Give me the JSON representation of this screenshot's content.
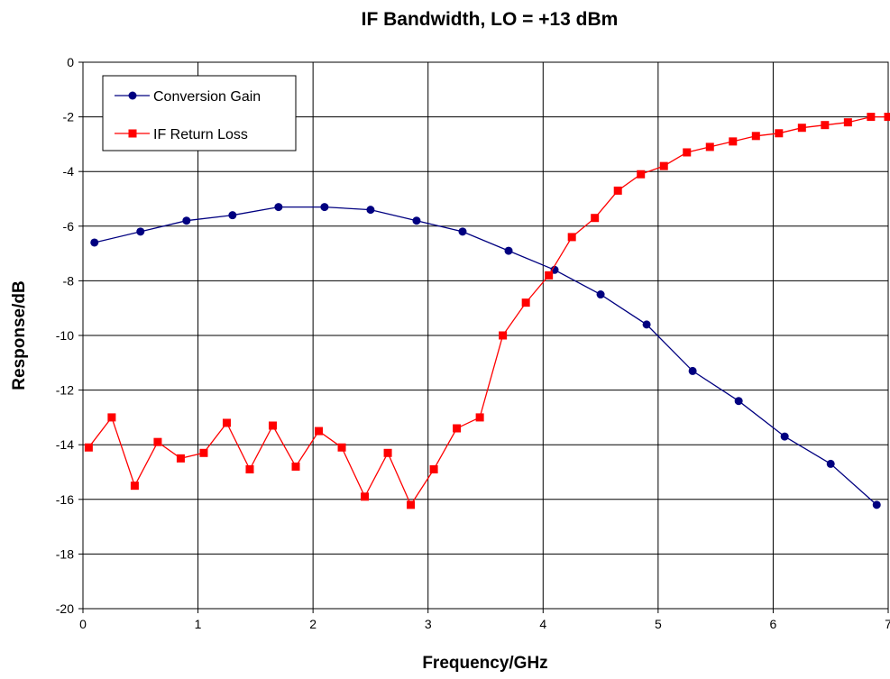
{
  "chart_data": {
    "type": "line",
    "title": "IF Bandwidth, LO = +13 dBm",
    "xlabel": "Frequency/GHz",
    "ylabel": "Response/dB",
    "xlim": [
      0,
      7
    ],
    "ylim": [
      -20,
      0
    ],
    "x_ticks": [
      "0",
      "1",
      "2",
      "3",
      "4",
      "5",
      "6",
      "7"
    ],
    "y_ticks": [
      "0",
      "-2",
      "-4",
      "-6",
      "-8",
      "-10",
      "-12",
      "-14",
      "-16",
      "-18",
      "-20"
    ],
    "grid": true,
    "legend": "top-left",
    "series": [
      {
        "name": "Conversion Gain",
        "color": "#000080",
        "marker": "circle",
        "x": [
          0.1,
          0.5,
          0.9,
          1.3,
          1.7,
          2.1,
          2.5,
          2.9,
          3.3,
          3.7,
          4.1,
          4.5,
          4.9,
          5.3,
          5.7,
          6.1,
          6.5,
          6.9
        ],
        "y": [
          -6.6,
          -6.2,
          -5.8,
          -5.6,
          -5.3,
          -5.3,
          -5.4,
          -5.8,
          -6.2,
          -6.9,
          -7.6,
          -8.5,
          -9.6,
          -11.3,
          -12.4,
          -13.7,
          -14.7,
          -16.2
        ]
      },
      {
        "name": "IF Return Loss",
        "color": "#ff0000",
        "marker": "square",
        "x": [
          0.05,
          0.25,
          0.45,
          0.65,
          0.85,
          1.05,
          1.25,
          1.45,
          1.65,
          1.85,
          2.05,
          2.25,
          2.45,
          2.65,
          2.85,
          3.05,
          3.25,
          3.45,
          3.65,
          3.85,
          4.05,
          4.25,
          4.45,
          4.65,
          4.85,
          5.05,
          5.25,
          5.45,
          5.65,
          5.85,
          6.05,
          6.25,
          6.45,
          6.65,
          6.85,
          7.0
        ],
        "y": [
          -14.1,
          -13.0,
          -15.5,
          -13.9,
          -14.5,
          -14.3,
          -13.2,
          -14.9,
          -13.3,
          -14.8,
          -13.5,
          -14.1,
          -15.9,
          -14.3,
          -16.2,
          -14.9,
          -13.4,
          -13.0,
          -10.0,
          -8.8,
          -7.8,
          -6.4,
          -5.7,
          -4.7,
          -4.1,
          -3.8,
          -3.3,
          -3.1,
          -2.9,
          -2.7,
          -2.6,
          -2.4,
          -2.3,
          -2.2,
          -2.0,
          -2.0
        ]
      }
    ]
  }
}
